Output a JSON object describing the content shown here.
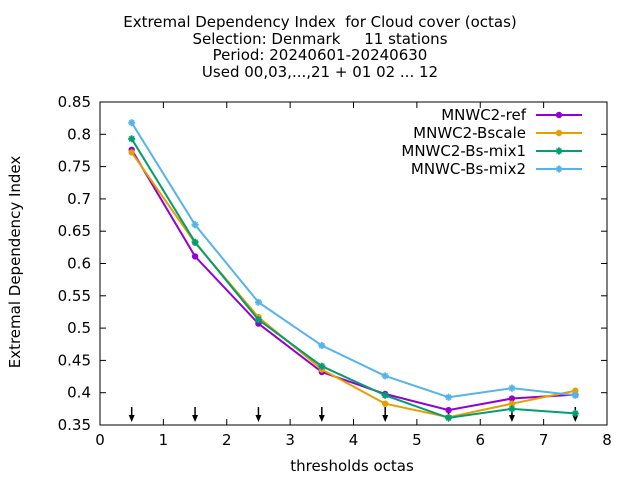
{
  "chart_data": {
    "type": "line",
    "title_lines": [
      "Extremal Dependency Index  for Cloud cover (octas)",
      "Selection: Denmark     11 stations",
      "Period: 20240601-20240630",
      "Used 00,03,...,21 + 01 02 ... 12"
    ],
    "xlabel": "thresholds octas",
    "ylabel": "Extremal Dependency Index",
    "xlim": [
      0,
      8
    ],
    "ylim": [
      0.35,
      0.85
    ],
    "x_ticks": [
      "0",
      "1",
      "2",
      "3",
      "4",
      "5",
      "6",
      "7",
      "8"
    ],
    "y_ticks": [
      "0.35",
      "0.4",
      "0.45",
      "0.5",
      "0.55",
      "0.6",
      "0.65",
      "0.7",
      "0.75",
      "0.8",
      "0.85"
    ],
    "legend_position": "top-right",
    "grid": false,
    "x": [
      0.5,
      1.5,
      2.5,
      3.5,
      4.5,
      5.5,
      6.5,
      7.5
    ],
    "series": [
      {
        "name": "MNWC2-ref",
        "color": "#9400d3",
        "marker": "circle",
        "values": [
          0.776,
          0.611,
          0.507,
          0.432,
          0.398,
          0.373,
          0.391,
          0.397
        ]
      },
      {
        "name": "MNWC2-Bscale",
        "color": "#e69f00",
        "marker": "circle",
        "values": [
          0.772,
          0.632,
          0.517,
          0.436,
          0.383,
          0.362,
          0.383,
          0.403
        ]
      },
      {
        "name": "MNWC2-Bs-mix1",
        "color": "#009e73",
        "marker": "star",
        "values": [
          0.793,
          0.633,
          0.513,
          0.441,
          0.396,
          0.361,
          0.375,
          0.368
        ]
      },
      {
        "name": "MNWC-Bs-mix2",
        "color": "#56b4e9",
        "marker": "star",
        "values": [
          0.818,
          0.66,
          0.54,
          0.473,
          0.426,
          0.393,
          0.407,
          0.396
        ]
      }
    ],
    "arrow_markers_x": [
      0.5,
      1.5,
      2.5,
      3.5,
      4.5,
      5.5,
      6.5,
      7.5
    ]
  }
}
